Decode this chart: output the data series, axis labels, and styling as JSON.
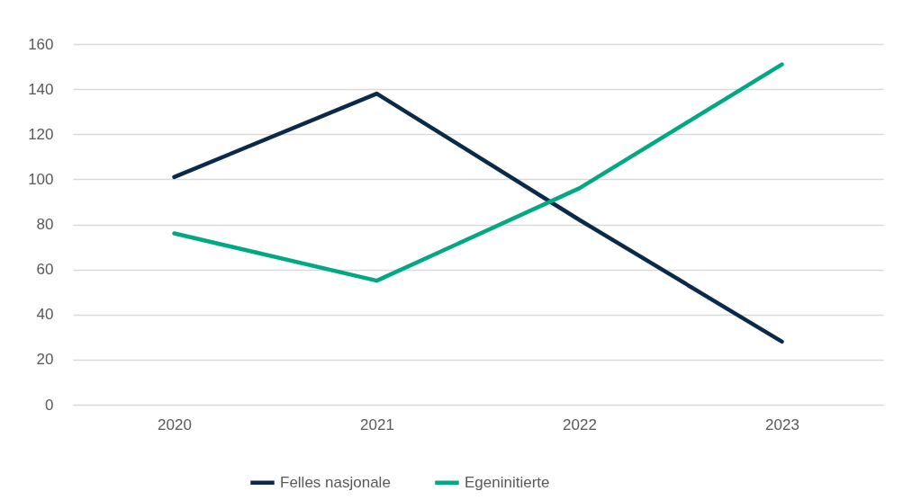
{
  "chart_data": {
    "type": "line",
    "categories": [
      "2020",
      "2021",
      "2022",
      "2023"
    ],
    "series": [
      {
        "name": "Felles nasjonale",
        "color": "#0b2a4a",
        "values": [
          101,
          138,
          82,
          28
        ]
      },
      {
        "name": "Egeninitierte",
        "color": "#00a982",
        "values": [
          76,
          55,
          96,
          151
        ]
      }
    ],
    "ylim": [
      0,
      160
    ],
    "yticks": [
      0,
      20,
      40,
      60,
      80,
      100,
      120,
      140,
      160
    ],
    "grid": "y",
    "legend": "bottom",
    "marker": "none",
    "line_style": "solid"
  }
}
